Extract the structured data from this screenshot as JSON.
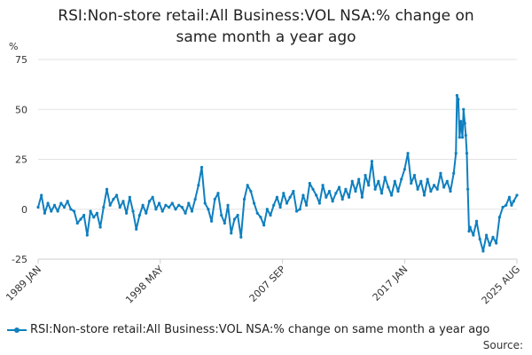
{
  "chart_data": {
    "type": "line",
    "title_lines": [
      "RSI:Non-store retail:All Business:VOL NSA:% change on",
      "same month a year ago"
    ],
    "ylabel": "%",
    "ylim": [
      -25,
      75
    ],
    "yticks": [
      -25,
      0,
      25,
      50,
      75
    ],
    "grid": true,
    "x_tick_labels": [
      "1989 JAN",
      "1998 MAY",
      "2007 SEP",
      "2017 JAN",
      "2025 AUG"
    ],
    "x_tick_years": [
      1989.0,
      1998.33,
      2007.67,
      2017.0,
      2025.58
    ],
    "x_range": [
      1989.0,
      2025.58
    ],
    "legend_position": "bottom",
    "series": [
      {
        "name": "RSI:Non-store retail:All Business:VOL NSA:% change on same month a year ago",
        "color": "#0f7fbf",
        "points": [
          [
            1989.0,
            1
          ],
          [
            1989.25,
            7
          ],
          [
            1989.5,
            -2
          ],
          [
            1989.75,
            3
          ],
          [
            1990.0,
            -1
          ],
          [
            1990.25,
            2
          ],
          [
            1990.5,
            -1
          ],
          [
            1990.75,
            3
          ],
          [
            1991.0,
            1
          ],
          [
            1991.25,
            4
          ],
          [
            1991.5,
            0
          ],
          [
            1991.75,
            -1
          ],
          [
            1992.0,
            -7
          ],
          [
            1992.25,
            -5
          ],
          [
            1992.5,
            -3
          ],
          [
            1992.75,
            -13
          ],
          [
            1993.0,
            -1
          ],
          [
            1993.25,
            -4
          ],
          [
            1993.5,
            -2
          ],
          [
            1993.75,
            -9
          ],
          [
            1994.0,
            1
          ],
          [
            1994.25,
            10
          ],
          [
            1994.5,
            2
          ],
          [
            1994.75,
            5
          ],
          [
            1995.0,
            7
          ],
          [
            1995.25,
            1
          ],
          [
            1995.5,
            4
          ],
          [
            1995.75,
            -2
          ],
          [
            1996.0,
            6
          ],
          [
            1996.25,
            -1
          ],
          [
            1996.5,
            -10
          ],
          [
            1996.75,
            -3
          ],
          [
            1997.0,
            2
          ],
          [
            1997.25,
            -2
          ],
          [
            1997.5,
            4
          ],
          [
            1997.75,
            6
          ],
          [
            1998.0,
            0
          ],
          [
            1998.25,
            3
          ],
          [
            1998.5,
            -1
          ],
          [
            1998.75,
            2
          ],
          [
            1999.0,
            1
          ],
          [
            1999.25,
            3
          ],
          [
            1999.5,
            0
          ],
          [
            1999.75,
            2
          ],
          [
            2000.0,
            1
          ],
          [
            2000.25,
            -2
          ],
          [
            2000.5,
            3
          ],
          [
            2000.75,
            -1
          ],
          [
            2001.0,
            5
          ],
          [
            2001.25,
            12
          ],
          [
            2001.5,
            21
          ],
          [
            2001.75,
            3
          ],
          [
            2002.0,
            0
          ],
          [
            2002.25,
            -6
          ],
          [
            2002.5,
            5
          ],
          [
            2002.75,
            8
          ],
          [
            2003.0,
            -3
          ],
          [
            2003.25,
            -7
          ],
          [
            2003.5,
            2
          ],
          [
            2003.75,
            -12
          ],
          [
            2004.0,
            -5
          ],
          [
            2004.25,
            -3
          ],
          [
            2004.5,
            -14
          ],
          [
            2004.75,
            5
          ],
          [
            2005.0,
            12
          ],
          [
            2005.25,
            9
          ],
          [
            2005.5,
            3
          ],
          [
            2005.75,
            -2
          ],
          [
            2006.0,
            -4
          ],
          [
            2006.25,
            -8
          ],
          [
            2006.5,
            0
          ],
          [
            2006.75,
            -3
          ],
          [
            2007.0,
            2
          ],
          [
            2007.25,
            6
          ],
          [
            2007.5,
            1
          ],
          [
            2007.75,
            8
          ],
          [
            2008.0,
            3
          ],
          [
            2008.25,
            6
          ],
          [
            2008.5,
            9
          ],
          [
            2008.75,
            -1
          ],
          [
            2009.0,
            0
          ],
          [
            2009.25,
            7
          ],
          [
            2009.5,
            2
          ],
          [
            2009.75,
            13
          ],
          [
            2010.0,
            10
          ],
          [
            2010.25,
            7
          ],
          [
            2010.5,
            3
          ],
          [
            2010.75,
            12
          ],
          [
            2011.0,
            6
          ],
          [
            2011.25,
            9
          ],
          [
            2011.5,
            4
          ],
          [
            2011.75,
            8
          ],
          [
            2012.0,
            11
          ],
          [
            2012.25,
            5
          ],
          [
            2012.5,
            10
          ],
          [
            2012.75,
            6
          ],
          [
            2013.0,
            14
          ],
          [
            2013.25,
            9
          ],
          [
            2013.5,
            15
          ],
          [
            2013.75,
            6
          ],
          [
            2014.0,
            17
          ],
          [
            2014.25,
            12
          ],
          [
            2014.5,
            24
          ],
          [
            2014.75,
            10
          ],
          [
            2015.0,
            14
          ],
          [
            2015.25,
            8
          ],
          [
            2015.5,
            16
          ],
          [
            2015.75,
            11
          ],
          [
            2016.0,
            7
          ],
          [
            2016.25,
            14
          ],
          [
            2016.5,
            9
          ],
          [
            2016.75,
            15
          ],
          [
            2017.0,
            20
          ],
          [
            2017.25,
            28
          ],
          [
            2017.5,
            13
          ],
          [
            2017.75,
            17
          ],
          [
            2018.0,
            10
          ],
          [
            2018.25,
            14
          ],
          [
            2018.5,
            7
          ],
          [
            2018.75,
            15
          ],
          [
            2019.0,
            9
          ],
          [
            2019.25,
            12
          ],
          [
            2019.5,
            10
          ],
          [
            2019.75,
            18
          ],
          [
            2020.0,
            11
          ],
          [
            2020.25,
            14
          ],
          [
            2020.5,
            9
          ],
          [
            2020.75,
            18
          ],
          [
            2020.92,
            28
          ],
          [
            2021.0,
            57
          ],
          [
            2021.1,
            55
          ],
          [
            2021.2,
            36
          ],
          [
            2021.3,
            44
          ],
          [
            2021.42,
            36
          ],
          [
            2021.5,
            50
          ],
          [
            2021.6,
            43
          ],
          [
            2021.67,
            37
          ],
          [
            2021.75,
            28
          ],
          [
            2021.83,
            10
          ],
          [
            2021.92,
            -11
          ],
          [
            2022.0,
            -9
          ],
          [
            2022.25,
            -13
          ],
          [
            2022.5,
            -6
          ],
          [
            2022.75,
            -15
          ],
          [
            2023.0,
            -21
          ],
          [
            2023.25,
            -13
          ],
          [
            2023.5,
            -18
          ],
          [
            2023.75,
            -14
          ],
          [
            2024.0,
            -17
          ],
          [
            2024.25,
            -4
          ],
          [
            2024.5,
            1
          ],
          [
            2024.75,
            2
          ],
          [
            2025.0,
            6
          ],
          [
            2025.17,
            2
          ],
          [
            2025.33,
            4
          ],
          [
            2025.58,
            7
          ]
        ]
      }
    ]
  },
  "source_label": "Source:"
}
